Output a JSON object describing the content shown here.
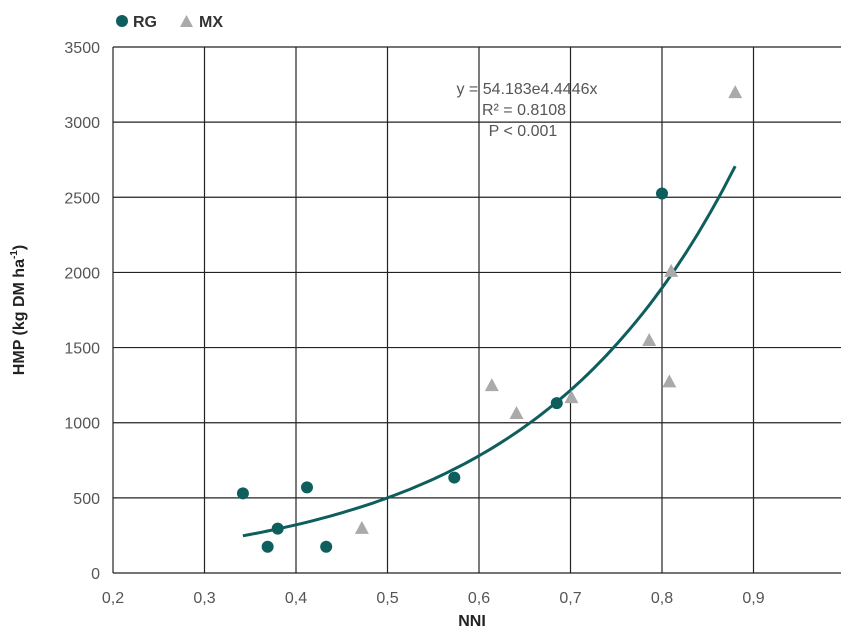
{
  "chart_data": {
    "type": "scatter",
    "xlabel": "NNI",
    "ylabel": "HMP (kg DM ha",
    "ylabel_sup": "-1",
    "ylabel_close": ")",
    "xlim": [
      0.2,
      1.0
    ],
    "ylim": [
      0,
      3500
    ],
    "xticks": [
      "0,2",
      "0,3",
      "0,4",
      "0,5",
      "0,6",
      "0,7",
      "0,8",
      "0,9",
      "1"
    ],
    "yticks": [
      "0",
      "500",
      "1000",
      "1500",
      "2000",
      "2500",
      "3000",
      "3500"
    ],
    "grid": true,
    "legend_position": "top-left",
    "series": [
      {
        "name": "RG",
        "marker": "circle",
        "color": "#0e5e5e",
        "points": [
          {
            "x": 0.342,
            "y": 530
          },
          {
            "x": 0.369,
            "y": 175
          },
          {
            "x": 0.38,
            "y": 295
          },
          {
            "x": 0.412,
            "y": 570
          },
          {
            "x": 0.433,
            "y": 175
          },
          {
            "x": 0.573,
            "y": 635
          },
          {
            "x": 0.685,
            "y": 1130
          },
          {
            "x": 0.8,
            "y": 2525
          }
        ]
      },
      {
        "name": "MX",
        "marker": "triangle",
        "color": "#aaaaaa",
        "points": [
          {
            "x": 0.472,
            "y": 300
          },
          {
            "x": 0.614,
            "y": 1250
          },
          {
            "x": 0.641,
            "y": 1065
          },
          {
            "x": 0.701,
            "y": 1170
          },
          {
            "x": 0.786,
            "y": 1550
          },
          {
            "x": 0.808,
            "y": 1275
          },
          {
            "x": 0.81,
            "y": 2010
          },
          {
            "x": 0.88,
            "y": 3200
          }
        ]
      }
    ],
    "trendline": {
      "type": "exponential",
      "a": 54.183,
      "b": 4.4446,
      "x_range": [
        0.342,
        0.88
      ],
      "color": "#0e5e5e"
    },
    "annotations": [
      "y = 54.183e4.4446x",
      "R² = 0.8108",
      "P < 0.001"
    ]
  }
}
